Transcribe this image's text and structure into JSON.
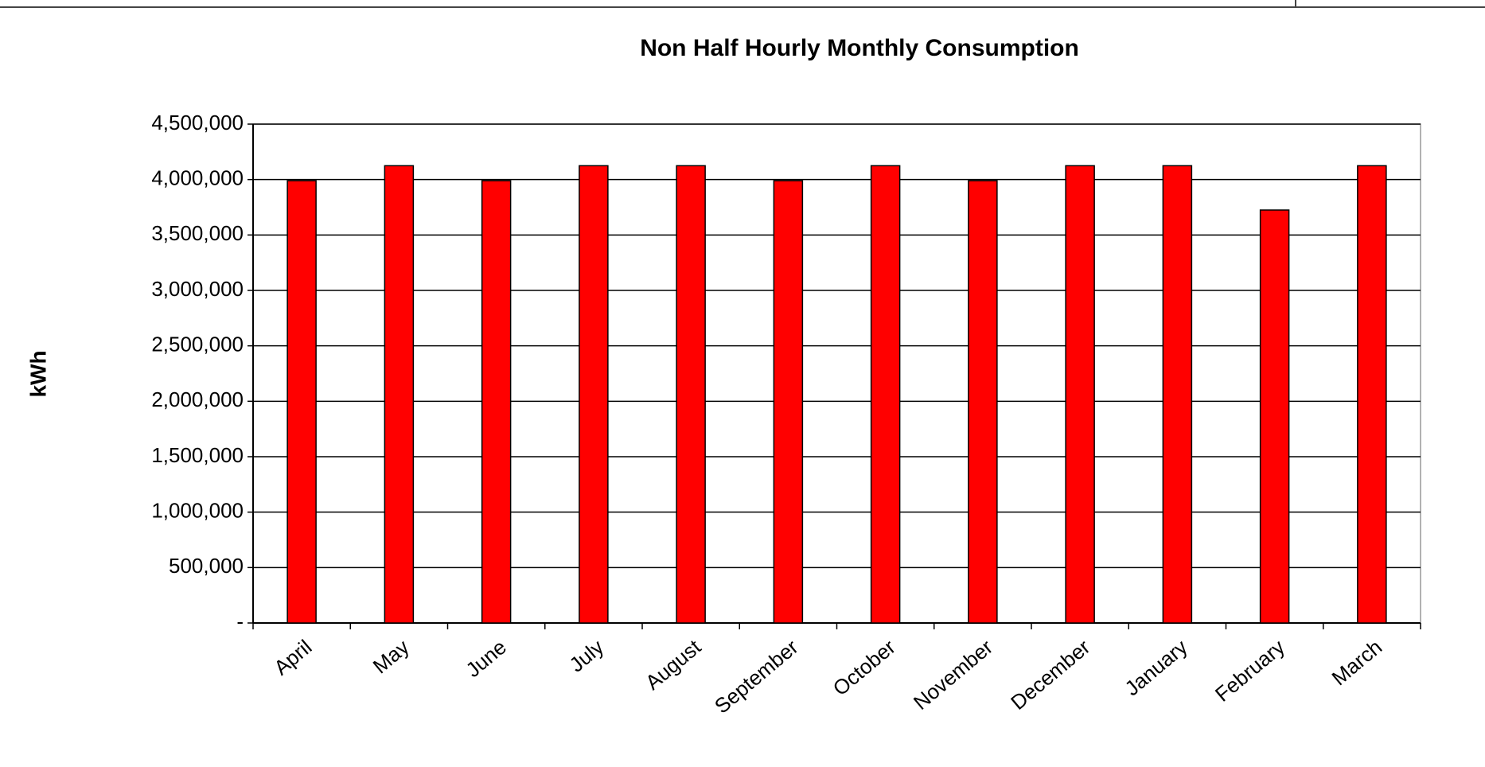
{
  "chart_data": {
    "type": "bar",
    "title": "Non Half Hourly Monthly Consumption",
    "y_label": "kWh",
    "categories": [
      "April",
      "May",
      "June",
      "July",
      "August",
      "September",
      "October",
      "November",
      "December",
      "January",
      "February",
      "March"
    ],
    "values": [
      3990000,
      4125000,
      3990000,
      4125000,
      4125000,
      3990000,
      4125000,
      3990000,
      4125000,
      4125000,
      3725000,
      4125000
    ],
    "color": "#ff0000",
    "ylim": [
      0,
      4500000
    ],
    "yticks": [
      {
        "value": 0,
        "label": "-"
      },
      {
        "value": 500000,
        "label": "500,000"
      },
      {
        "value": 1000000,
        "label": "1,000,000"
      },
      {
        "value": 1500000,
        "label": "1,500,000"
      },
      {
        "value": 2000000,
        "label": "2,000,000"
      },
      {
        "value": 2500000,
        "label": "2,500,000"
      },
      {
        "value": 3000000,
        "label": "3,000,000"
      },
      {
        "value": 3500000,
        "label": "3,500,000"
      },
      {
        "value": 4000000,
        "label": "4,000,000"
      },
      {
        "value": 4500000,
        "label": "4,500,000"
      }
    ],
    "grid": true
  }
}
